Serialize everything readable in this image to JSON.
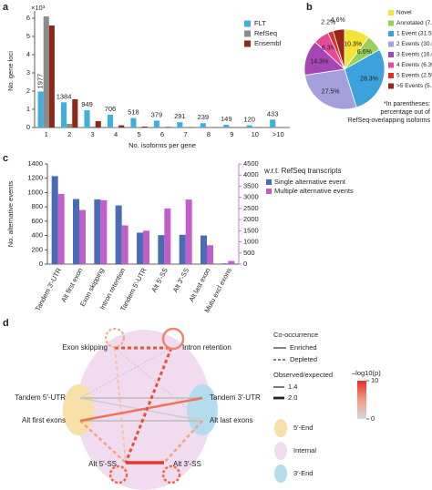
{
  "chart_data": [
    {
      "type": "bar",
      "panel": "a",
      "y_label": "No. gene loci",
      "y_multiplier": "×10³",
      "x_label": "No. isoforms per gene",
      "categories": [
        "1",
        "2",
        "3",
        "4",
        "5",
        "6",
        "7",
        "8",
        "9",
        "10",
        ">10"
      ],
      "series": [
        {
          "name": "FLT",
          "color": "#41aee0",
          "values": [
            1.977,
            1.384,
            0.949,
            0.706,
            0.518,
            0.379,
            0.291,
            0.239,
            0.149,
            0.12,
            0.433
          ],
          "value_labels": [
            "1977",
            "1384",
            "949",
            "706",
            "518",
            "379",
            "291",
            "239",
            "149",
            "120",
            "433"
          ]
        },
        {
          "name": "RefSeq",
          "color": "#8c8c8c",
          "values": [
            6.1,
            0.2,
            0.05,
            0.02,
            0.01,
            0.01,
            0,
            0,
            0,
            0,
            0
          ]
        },
        {
          "name": "Ensembl",
          "color": "#8b2a1a",
          "values": [
            5.6,
            1.55,
            0.35,
            0.12,
            0.05,
            0.03,
            0.02,
            0.01,
            0.01,
            0.01,
            0.01
          ]
        }
      ],
      "ylim": [
        0,
        6.2
      ],
      "yticks": [
        0,
        1,
        2,
        3,
        4,
        5,
        6
      ]
    },
    {
      "type": "pie",
      "panel": "b",
      "categories": [
        "Novel",
        "Annotated (7.4%)*",
        "1 Event (31.5%)",
        "2 Events (30.6%)",
        "3 Events (16.0%)",
        "4 Events (6.3%)",
        "5 Events (2.5%)",
        ">5 Events (5.1%)"
      ],
      "values": [
        10.3,
        6.6,
        28.3,
        27.5,
        14.3,
        6.3,
        2.2,
        4.6
      ],
      "value_labels": [
        "10.3%",
        "6.6%",
        "28.3%",
        "27.5%",
        "14.3%",
        "6.3%",
        "2.2%",
        "4.6%"
      ],
      "colors": [
        "#f4e434",
        "#9ccf5a",
        "#3ba2dc",
        "#a59fdc",
        "#a646b4",
        "#e8489a",
        "#e0302a",
        "#9a2418"
      ],
      "note": [
        "*In parentheses:",
        "percentage out of",
        "RefSeq-overlapping isoforms"
      ]
    },
    {
      "type": "bar",
      "panel": "c",
      "y_label": "No. alternative events",
      "legend_title": "w.r.t. RefSeq transcripts",
      "categories": [
        "Tandem 3′-UTR",
        "Alt first exon",
        "Exon skipping",
        "Intron retention",
        "Tandem 5′-UTR",
        "Alt 5′-SS",
        "Alt 3′-SS",
        "Alt last exon",
        "Mutu excl exons"
      ],
      "series": [
        {
          "name": "Single alternative event",
          "color": "#4a6cb4",
          "values": [
            1230,
            910,
            905,
            820,
            440,
            405,
            410,
            400,
            10
          ]
        },
        {
          "name": "Multiple alternative events",
          "color": "#c15ec8",
          "axis": "y2",
          "values": [
            3150,
            2430,
            2870,
            1740,
            1500,
            2500,
            2900,
            850,
            140
          ]
        }
      ],
      "ylim": [
        0,
        1400
      ],
      "yticks": [
        0,
        200,
        400,
        600,
        800,
        1000,
        1200,
        1400
      ],
      "y2lim": [
        0,
        4500
      ],
      "y2ticks": [
        0,
        500,
        1000,
        1500,
        2000,
        2500,
        3000,
        3500,
        4000,
        4500
      ]
    }
  ],
  "diagram": {
    "panel": "d",
    "nodes": [
      "Exon skipping",
      "Intron retention",
      "Tandem 5′-UTR",
      "Alt first exons",
      "Tandem 3′-UTR",
      "Alt last exons",
      "Alt 5′-SS",
      "Alt 3′-SS"
    ],
    "cooccurrence_title": "Co-occurrence",
    "enriched": "Enriched",
    "depleted": "Depleted",
    "ratio_title": "Observed/expected",
    "ratio_ticks": [
      "1.4",
      "2.0"
    ],
    "colorbar_title": "–log10(p)",
    "colorbar_ticks": [
      10,
      0
    ],
    "regions": [
      "5′-End",
      "Internal",
      "3′-End"
    ]
  }
}
